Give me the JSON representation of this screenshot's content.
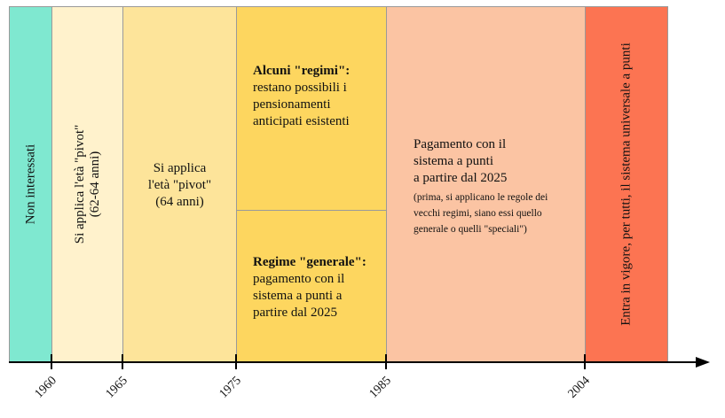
{
  "colors": {
    "col1": "#7fe8d0",
    "col2": "#fff2cc",
    "col3": "#fde49a",
    "col4": "#fdd65f",
    "col5": "#fbc4a3",
    "col6": "#fc7452"
  },
  "columns": {
    "c1": {
      "text": "Non interessati"
    },
    "c2": {
      "line1": "Si applica l'età \"pivot\"",
      "line2": "(62-64 anni)"
    },
    "c3": {
      "line1": "Si applica",
      "line2": "l'età \"pivot\"",
      "line3": "(64 anni)"
    },
    "c4_top": {
      "title": "Alcuni \"regimi\":",
      "line1": "restano possibili i",
      "line2": "pensionamenti",
      "line3": "anticipati esistenti"
    },
    "c4_bottom": {
      "title": "Regime \"generale\":",
      "line1": "pagamento con il",
      "line2": "sistema a punti a",
      "line3": "partire dal 2025"
    },
    "c5": {
      "line1": "Pagamento con il",
      "line2": "sistema a punti",
      "line3": "a partire dal 2025",
      "note1": "(prima, si applicano le regole dei",
      "note2": "vecchi regimi, siano essi quello",
      "note3": "generale o quelli \"speciali\")"
    },
    "c6": {
      "text": "Entra in vigore, per tutti, il sistema universale a punti"
    }
  },
  "axis": {
    "years": [
      "1960",
      "1965",
      "1975",
      "1985",
      "2004"
    ]
  }
}
